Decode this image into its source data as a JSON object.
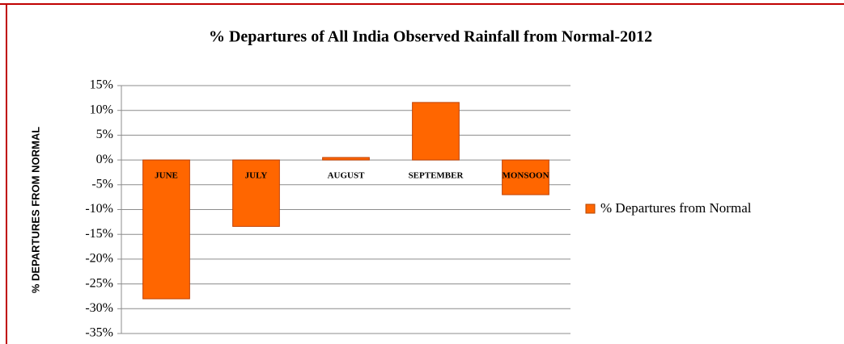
{
  "chart_data": {
    "type": "bar",
    "title": "% Departures of All India Observed Rainfall from Normal-2012",
    "y_label": "% DEPARTURES FROM NORMAL",
    "categories": [
      "JUNE",
      "JULY",
      "AUGUST",
      "SEPTEMBER",
      "MONSOON"
    ],
    "series": [
      {
        "name": "% Departures from Normal",
        "color": "#ff6600",
        "values": [
          -28,
          -13.4,
          0.5,
          11.6,
          -7
        ]
      }
    ],
    "ylim": [
      -35,
      15
    ],
    "yticks": [
      {
        "value": -35,
        "label": "-35%"
      },
      {
        "value": -30,
        "label": "-30%"
      },
      {
        "value": -25,
        "label": "-25%"
      },
      {
        "value": -20,
        "label": "-20%"
      },
      {
        "value": -15,
        "label": "-15%"
      },
      {
        "value": -10,
        "label": "-10%"
      },
      {
        "value": -5,
        "label": "-5%"
      },
      {
        "value": 0,
        "label": "0%"
      },
      {
        "value": 5,
        "label": "5%"
      },
      {
        "value": 10,
        "label": "10%"
      },
      {
        "value": 15,
        "label": "15%"
      }
    ],
    "grid": true,
    "legend": "right"
  }
}
